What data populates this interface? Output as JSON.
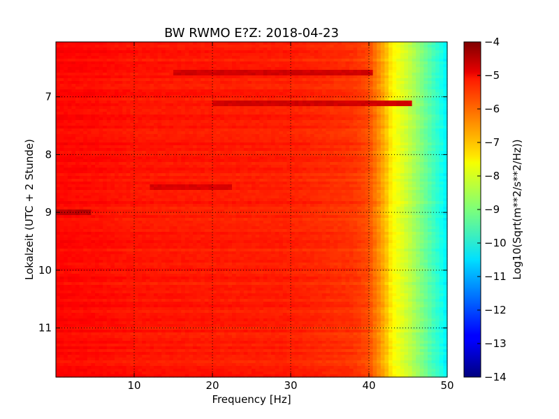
{
  "chart_data": {
    "type": "heatmap",
    "title": "BW RWMO E?Z: 2018-04-23",
    "xlabel": "Frequency [Hz]",
    "ylabel": "Lokalzeit (UTC + 2 Stunde)",
    "colorbar_label": "Log10(Sqrt(m**2/s**2/Hz))",
    "colormap": "jet",
    "xlim": [
      0,
      50
    ],
    "ylim": [
      6.05,
      11.85
    ],
    "y_inverted": true,
    "x_ticks": [
      10,
      20,
      30,
      40,
      50
    ],
    "x_tick_labels": [
      "10",
      "20",
      "30",
      "40",
      "50"
    ],
    "y_ticks": [
      7,
      8,
      9,
      10,
      11
    ],
    "y_tick_labels": [
      "7",
      "8",
      "9",
      "10",
      "11"
    ],
    "clim": [
      -14,
      -4
    ],
    "colorbar_ticks": [
      -4,
      -5,
      -6,
      -7,
      -8,
      -9,
      -10,
      -11,
      -12,
      -13,
      -14
    ],
    "colorbar_tick_labels": [
      "−4",
      "−5",
      "−6",
      "−7",
      "−8",
      "−9",
      "−10",
      "−11",
      "−12",
      "−13",
      "−14"
    ],
    "grid": "dotted",
    "z_profile_vs_frequency": {
      "frequency_hz": [
        0,
        5,
        10,
        20,
        30,
        38,
        40,
        41,
        42,
        43,
        44,
        45,
        46,
        47,
        48,
        49,
        50
      ],
      "log10_value": [
        -5.3,
        -5.35,
        -5.45,
        -5.5,
        -5.55,
        -5.75,
        -6.0,
        -6.5,
        -7.0,
        -7.7,
        -8.0,
        -8.3,
        -8.7,
        -9.1,
        -9.5,
        -9.9,
        -10.4
      ]
    },
    "annotations": [
      {
        "time": 9.0,
        "freq_range_hz": [
          0,
          4
        ],
        "log10_value": -4.6
      },
      {
        "time": 6.6,
        "freq_range_hz": [
          15,
          40
        ],
        "log10_value": -4.8
      },
      {
        "time": 7.1,
        "freq_range_hz": [
          20,
          45
        ],
        "log10_value": -4.8
      },
      {
        "time": 8.55,
        "freq_range_hz": [
          12,
          22
        ],
        "log10_value": -4.9
      }
    ]
  }
}
